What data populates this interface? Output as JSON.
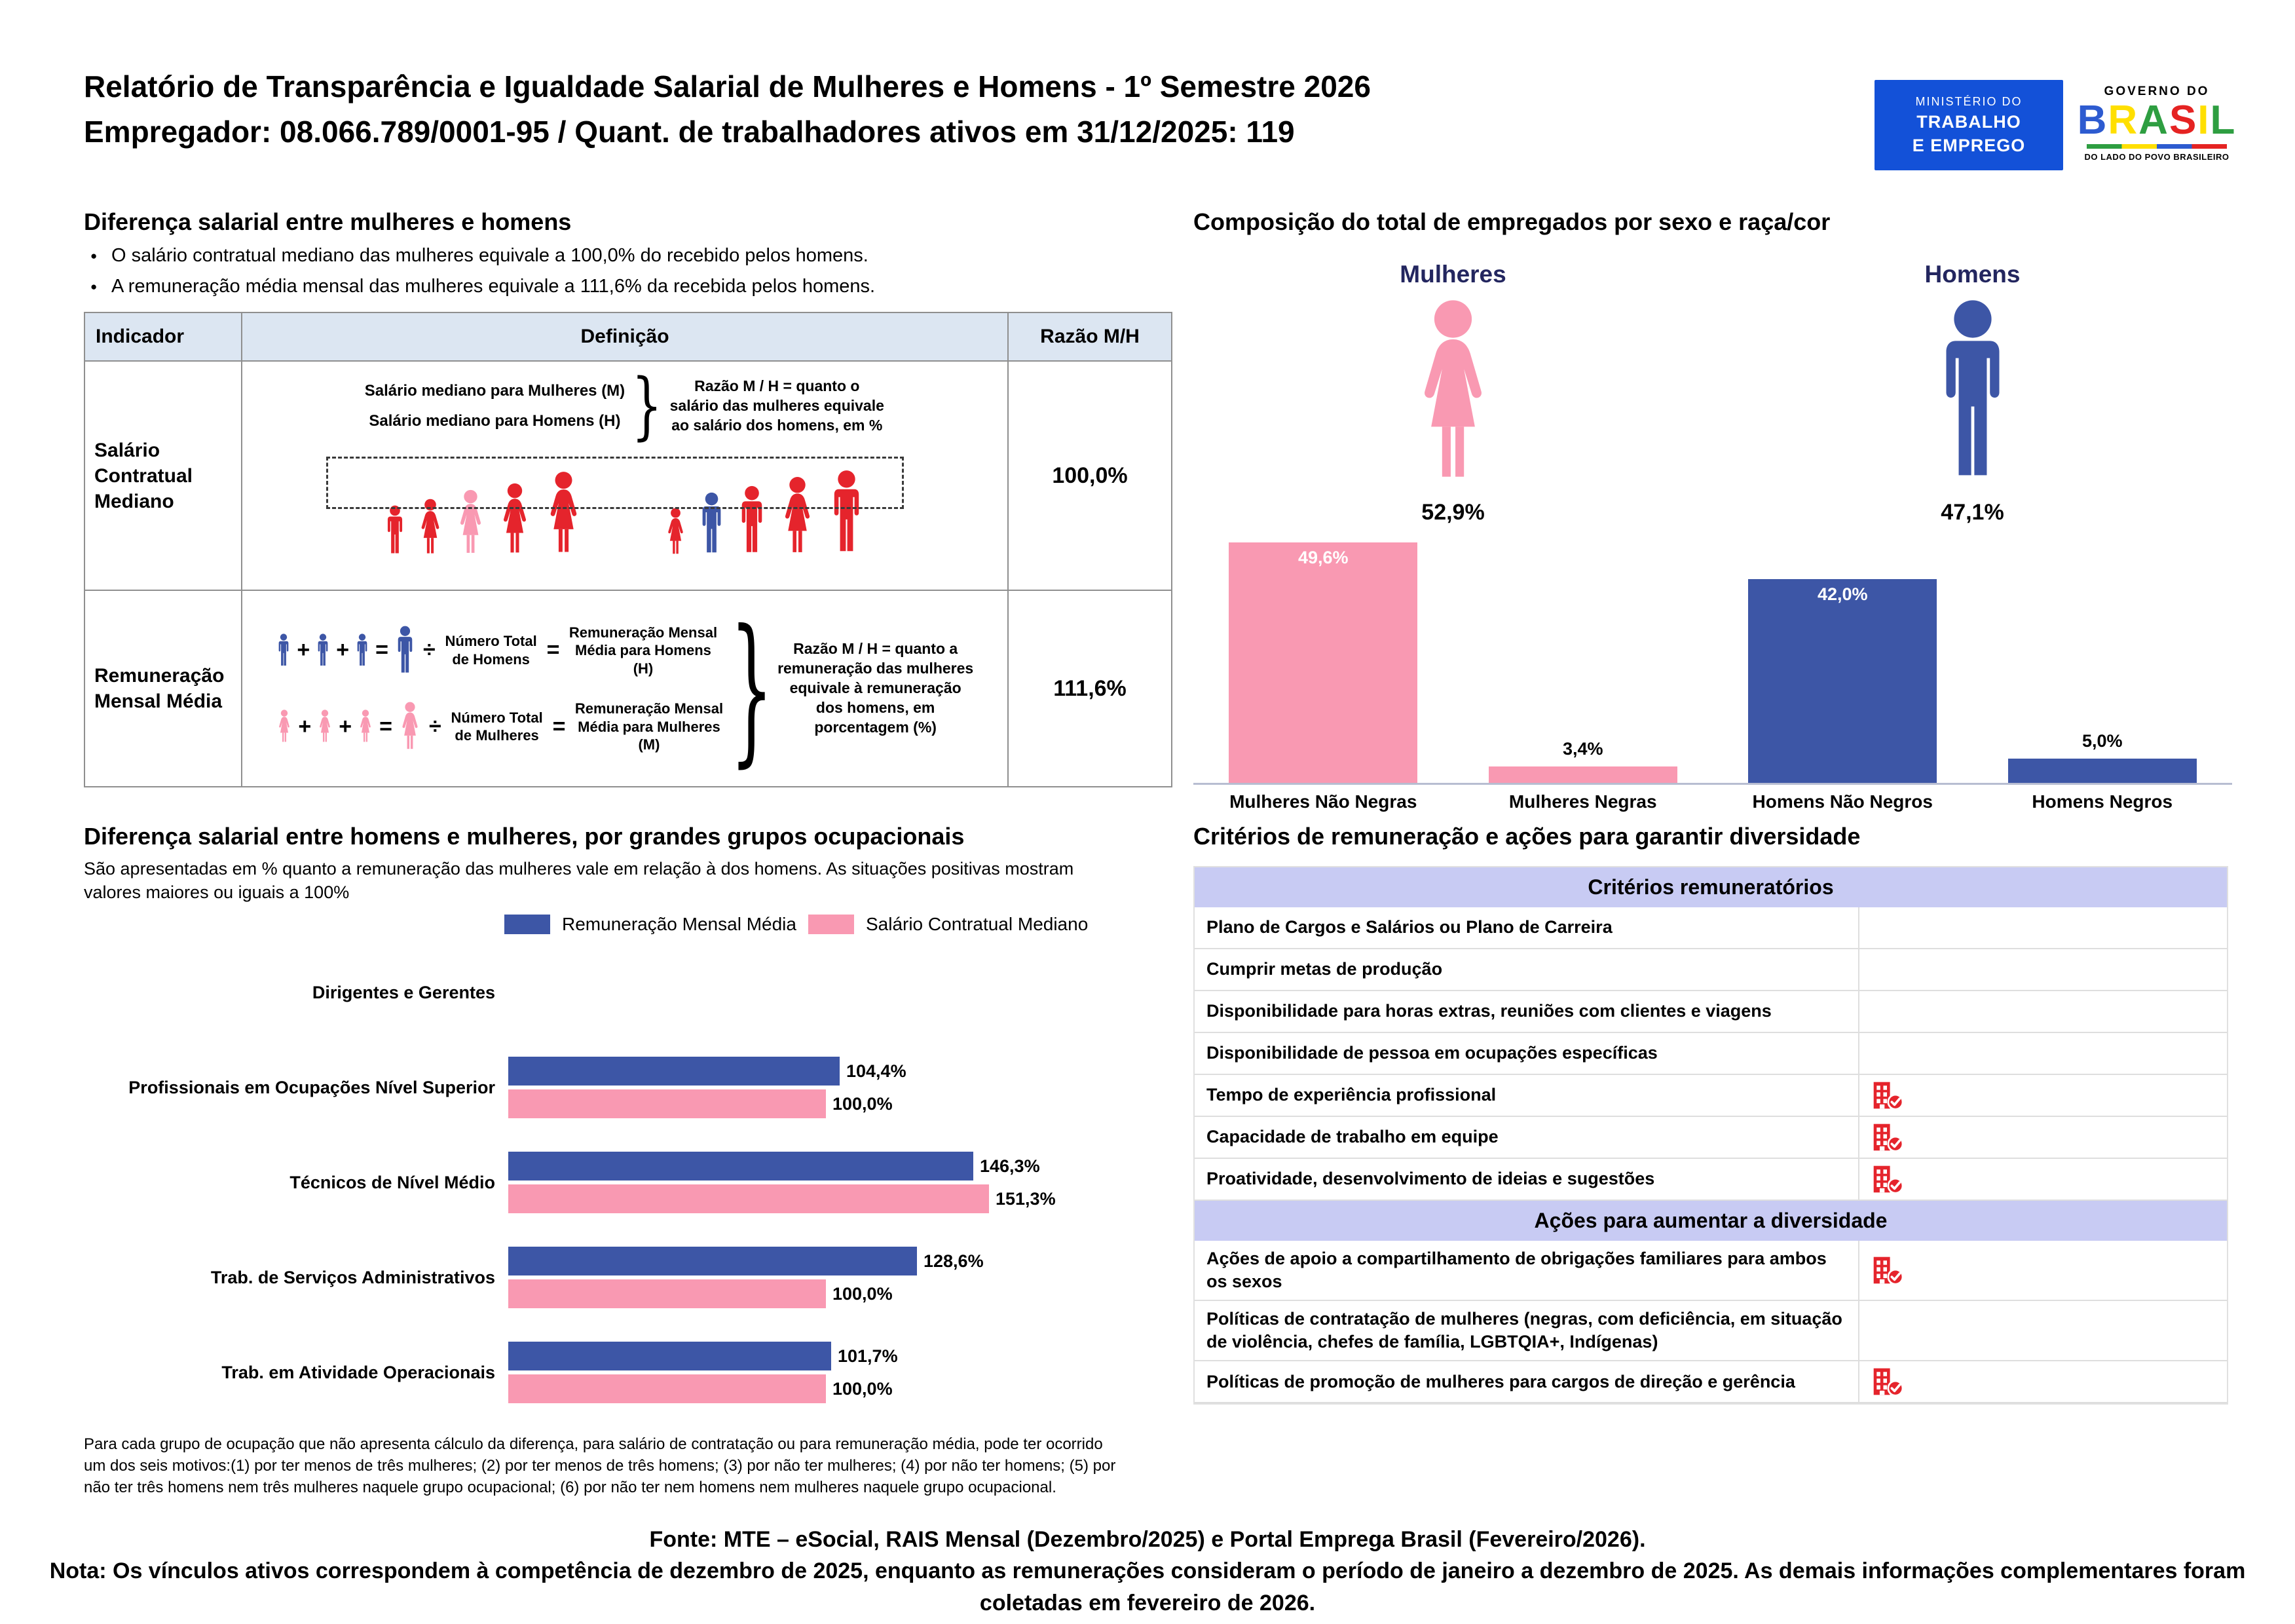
{
  "palette": {
    "pink": "#F999B2",
    "blue": "#3D56A6",
    "navy": "#23265F",
    "red": "#E5242C",
    "mte-blue": "#1351D8",
    "table-header-bg": "#DCE6F2",
    "crit-header-bg": "#C8CBF3"
  },
  "header": {
    "title_line1": "Relatório de Transparência e Igualdade Salarial de Mulheres e Homens - 1º Semestre 2026",
    "title_line2": "Empregador: 08.066.789/0001-95 / Quant. de trabalhadores ativos em 31/12/2025: 119",
    "mte_logo": {
      "line1": "MINISTÉRIO DO",
      "line2": "TRABALHO",
      "line3": "E EMPREGO"
    },
    "gov_logo": {
      "top": "GOVERNO DO",
      "word": "BRASIL",
      "letter_colors": [
        "#2D5BD0",
        "#FFDF00",
        "#2E9E41",
        "#E52322",
        "#FFDF00",
        "#2E9E41"
      ],
      "bottom": "DO LADO DO POVO BRASILEIRO"
    }
  },
  "salary_gap": {
    "heading": "Diferença salarial entre mulheres e homens",
    "bullets": [
      "O salário contratual mediano das mulheres equivale a 100,0% do recebido pelos homens.",
      "A remuneração média mensal das mulheres equivale a 111,6% da recebida pelos homens."
    ],
    "table": {
      "headers": [
        "Indicador",
        "Definição",
        "Razão M/H"
      ],
      "rows": [
        {
          "indicator": "Salário Contratual Mediano",
          "label_women": "Salário mediano para Mulheres (M)",
          "label_men": "Salário mediano para Homens (H)",
          "note": "Razão M / H = quanto o salário das mulheres equivale ao salário dos homens, em %",
          "ratio": "100,0%"
        },
        {
          "indicator": "Remuneração Mensal Média",
          "men_total_label": "Número Total de Homens",
          "men_avg_label": "Remuneração Mensal Média para Homens (H)",
          "women_total_label": "Número Total de Mulheres",
          "women_avg_label": "Remuneração Mensal Média para Mulheres (M)",
          "note": "Razão M / H = quanto a remuneração das mulheres equivale à remuneração dos homens, em porcentagem (%)",
          "ratio": "111,6%"
        }
      ]
    }
  },
  "composition": {
    "heading": "Composição do total de empregados por sexo e raça/cor",
    "women_label": "Mulheres",
    "women_pct": "52,9%",
    "men_label": "Homens",
    "men_pct": "47,1%"
  },
  "occupational": {
    "heading": "Diferença salarial entre homens e mulheres, por grandes grupos ocupacionais",
    "subtitle": "São apresentadas em % quanto a remuneração das mulheres vale em relação à dos homens. As situações positivas mostram valores maiores ou iguais a 100%",
    "legend": [
      "Remuneração Mensal Média",
      "Salário Contratual Mediano"
    ],
    "footnote": "Para cada grupo de ocupação que não apresenta cálculo da diferença, para salário de contratação ou para remuneração média, pode ter ocorrido um dos seis motivos:(1) por ter menos de três mulheres; (2) por ter menos de três homens; (3) por não ter mulheres; (4) por não ter homens; (5) por não ter três homens nem três mulheres naquele grupo ocupacional; (6) por não ter nem homens nem mulheres naquele grupo ocupacional."
  },
  "criteria": {
    "heading": "Critérios de remuneração e ações para garantir diversidade",
    "remuneration_header": "Critérios remuneratórios",
    "remuneration_rows": [
      {
        "label": "Plano de Cargos e Salários ou Plano de Carreira",
        "checked": false
      },
      {
        "label": "Cumprir metas de produção",
        "checked": false
      },
      {
        "label": "Disponibilidade para horas extras, reuniões com clientes e viagens",
        "checked": false
      },
      {
        "label": "Disponibilidade de pessoa em ocupações específicas",
        "checked": false
      },
      {
        "label": "Tempo de experiência profissional",
        "checked": true
      },
      {
        "label": "Capacidade de trabalho em equipe",
        "checked": true
      },
      {
        "label": "Proatividade, desenvolvimento de ideias e sugestões",
        "checked": true
      }
    ],
    "diversity_header": "Ações para aumentar a diversidade",
    "diversity_rows": [
      {
        "label": "Ações de apoio a compartilhamento de obrigações familiares para ambos os sexos",
        "checked": true
      },
      {
        "label": "Políticas de contratação de mulheres (negras, com deficiência, em situação de violência, chefes de família, LGBTQIA+, Indígenas)",
        "checked": false
      },
      {
        "label": "Políticas de promoção de mulheres para cargos de direção e gerência",
        "checked": true
      }
    ]
  },
  "footer": {
    "fonte": "Fonte: MTE – eSocial, RAIS Mensal (Dezembro/2025) e Portal Emprega Brasil (Fevereiro/2026).",
    "nota": "Nota: Os vínculos ativos correspondem à competência de dezembro de 2025, enquanto as remunerações consideram o período de janeiro a dezembro de 2025. As demais informações complementares foram coletadas em fevereiro de 2026."
  },
  "chart_data": [
    {
      "id": "composition-by-sex-race",
      "type": "bar",
      "title": "Composição do total de empregados por sexo e raça/cor",
      "categories": [
        "Mulheres Não Negras",
        "Mulheres Negras",
        "Homens Não Negros",
        "Homens Negros"
      ],
      "values": [
        49.6,
        3.4,
        42.0,
        5.0
      ],
      "labels": [
        "49,6%",
        "3,4%",
        "42,0%",
        "5,0%"
      ],
      "colors": [
        "pink",
        "pink",
        "blue",
        "blue"
      ],
      "ylim": [
        0,
        52
      ],
      "grid": false,
      "legend_position": "none"
    },
    {
      "id": "gap-by-occupational-group",
      "type": "bar",
      "orientation": "horizontal",
      "title": "Diferença salarial entre homens e mulheres, por grandes grupos ocupacionais",
      "categories": [
        "Dirigentes e Gerentes",
        "Profissionais em Ocupações Nível Superior",
        "Técnicos de Nível Médio",
        "Trab. de Serviços Administrativos",
        "Trab. em Atividade Operacionais"
      ],
      "series": [
        {
          "name": "Remuneração Mensal Média",
          "color": "blue",
          "values": [
            null,
            104.4,
            146.3,
            128.6,
            101.7
          ],
          "labels": [
            "",
            "104,4%",
            "146,3%",
            "128,6%",
            "101,7%"
          ]
        },
        {
          "name": "Salário Contratual Mediano",
          "color": "pink",
          "values": [
            null,
            100.0,
            151.3,
            100.0,
            100.0
          ],
          "labels": [
            "",
            "100,0%",
            "151,3%",
            "100,0%",
            "100,0%"
          ]
        }
      ],
      "xlim": [
        0,
        160
      ],
      "grid": false,
      "legend_position": "top"
    }
  ]
}
